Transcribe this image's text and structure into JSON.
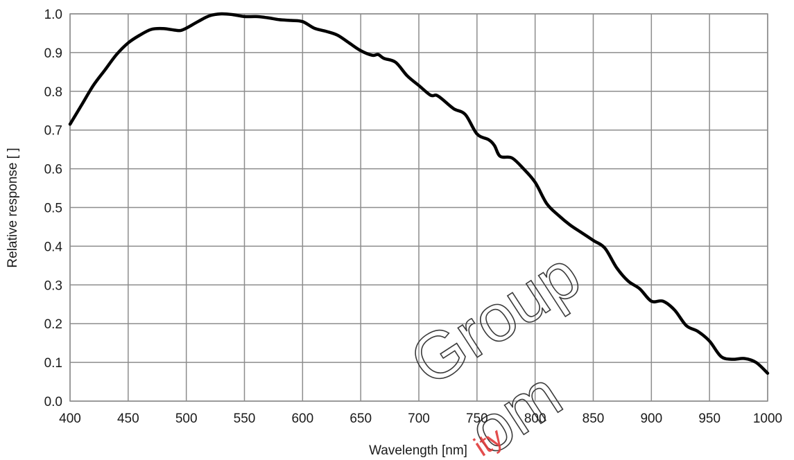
{
  "chart_data": {
    "type": "line",
    "title": "",
    "xlabel": "Wavelength [nm]",
    "ylabel": "Relative response [ ]",
    "xlim": [
      400,
      1000
    ],
    "ylim": [
      0,
      1.0
    ],
    "x_ticks": [
      400,
      450,
      500,
      550,
      600,
      650,
      700,
      750,
      800,
      850,
      900,
      950,
      1000
    ],
    "y_ticks": [
      "0.0",
      "0.1",
      "0.2",
      "0.3",
      "0.4",
      "0.5",
      "0.6",
      "0.7",
      "0.8",
      "0.9",
      "1.0"
    ],
    "grid": true,
    "legend": "none",
    "series": [
      {
        "color": "#000000",
        "x": [
          400,
          410,
          420,
          430,
          440,
          450,
          460,
          470,
          480,
          490,
          495,
          500,
          510,
          520,
          530,
          540,
          550,
          560,
          570,
          580,
          590,
          600,
          610,
          620,
          630,
          640,
          650,
          660,
          665,
          670,
          680,
          690,
          700,
          710,
          715,
          720,
          730,
          740,
          750,
          760,
          765,
          770,
          780,
          790,
          800,
          810,
          820,
          830,
          840,
          850,
          860,
          870,
          880,
          890,
          900,
          910,
          920,
          930,
          940,
          950,
          960,
          970,
          980,
          990,
          1000
        ],
        "y": [
          0.715,
          0.765,
          0.815,
          0.855,
          0.895,
          0.925,
          0.945,
          0.96,
          0.962,
          0.958,
          0.957,
          0.963,
          0.98,
          0.995,
          1.0,
          0.998,
          0.993,
          0.993,
          0.99,
          0.985,
          0.983,
          0.98,
          0.963,
          0.955,
          0.945,
          0.925,
          0.905,
          0.893,
          0.895,
          0.885,
          0.875,
          0.84,
          0.815,
          0.79,
          0.79,
          0.78,
          0.755,
          0.74,
          0.69,
          0.675,
          0.66,
          0.632,
          0.628,
          0.6,
          0.565,
          0.51,
          0.48,
          0.455,
          0.435,
          0.415,
          0.395,
          0.345,
          0.31,
          0.29,
          0.258,
          0.258,
          0.235,
          0.195,
          0.18,
          0.155,
          0.115,
          0.108,
          0.11,
          0.1,
          0.072
        ]
      }
    ]
  },
  "watermark": {
    "big_text": "Group",
    "big_text_2": "om",
    "red_text": "ity"
  }
}
